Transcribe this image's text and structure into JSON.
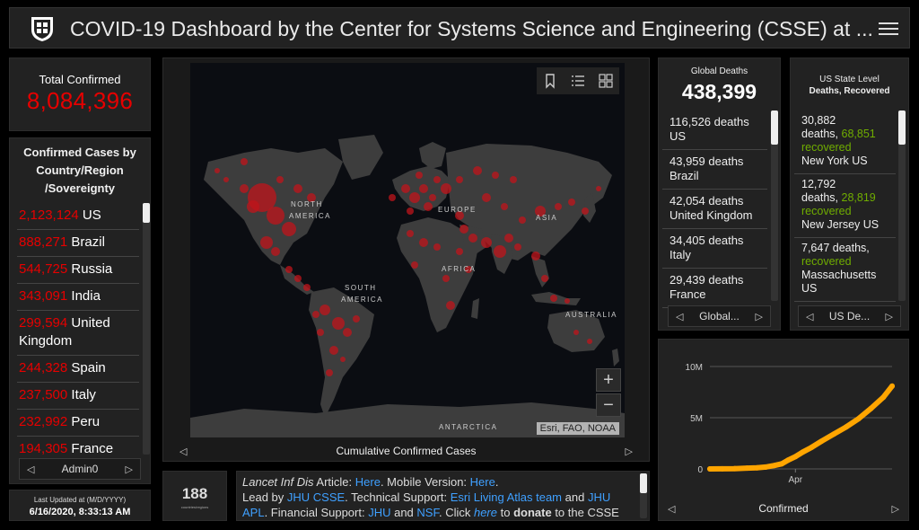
{
  "header": {
    "title": "COVID-19 Dashboard by the Center for Systems Science and Engineering (CSSE) at ..."
  },
  "total_confirmed": {
    "label": "Total Confirmed",
    "value": "8,084,396"
  },
  "confirmed_by_country": {
    "title_line1": "Confirmed Cases by",
    "title_line2": "Country/Region",
    "title_line3": "/Sovereignty",
    "rows": [
      {
        "count": "2,123,124",
        "name": "US"
      },
      {
        "count": "888,271",
        "name": "Brazil"
      },
      {
        "count": "544,725",
        "name": "Russia"
      },
      {
        "count": "343,091",
        "name": "India"
      },
      {
        "count": "299,594",
        "name": "United Kingdom"
      },
      {
        "count": "244,328",
        "name": "Spain"
      },
      {
        "count": "237,500",
        "name": "Italy"
      },
      {
        "count": "232,992",
        "name": "Peru"
      },
      {
        "count": "194,305",
        "name": "France"
      }
    ],
    "pager_label": "Admin0"
  },
  "last_updated": {
    "label": "Last Updated at (M/D/YYYY)",
    "value": "6/16/2020, 8:33:13 AM"
  },
  "map": {
    "labels": {
      "north_america_1": "NORTH",
      "north_america_2": "AMERICA",
      "south_america_1": "SOUTH",
      "south_america_2": "AMERICA",
      "europe": "EUROPE",
      "asia": "ASIA",
      "africa": "AFRICA",
      "australia": "AUSTRALIA",
      "antarctica": "ANTARCTICA"
    },
    "zoom_in": "+",
    "zoom_out": "−",
    "attribution": "Esri, FAO, NOAA",
    "caption": "Cumulative Confirmed Cases",
    "bubble_color": "#c0141b"
  },
  "country_count": {
    "value": "188",
    "label": "countries/regions"
  },
  "info": {
    "journal": "Lancet Inf Dis",
    "article": " Article: ",
    "here1": "Here",
    "mobile": ". Mobile Version: ",
    "here2": "Here",
    "dot": ".",
    "lead": "Lead by ",
    "jhu_csse": "JHU CSSE",
    "tech": ". Technical Support: ",
    "esri": "Esri Living Atlas team",
    "and1": " and ",
    "jhu_apl": "JHU APL",
    "fin": ". Financial Support: ",
    "jhu": "JHU",
    "and2": " and ",
    "nsf": "NSF",
    "click": ". Click ",
    "here3": "here",
    "to": " to ",
    "donate": "donate",
    "tail": " to the CSSE"
  },
  "global_deaths": {
    "label": "Global Deaths",
    "value": "438,399",
    "rows": [
      {
        "count": "116,526",
        "unit": "deaths",
        "name": "US"
      },
      {
        "count": "43,959",
        "unit": "deaths",
        "name": "Brazil"
      },
      {
        "count": "42,054",
        "unit": "deaths",
        "name": "United Kingdom"
      },
      {
        "count": "34,405",
        "unit": "deaths",
        "name": "Italy"
      },
      {
        "count": "29,439",
        "unit": "deaths",
        "name": "France"
      }
    ],
    "pager_label": "Global..."
  },
  "us_states": {
    "title_line1": "US State Level",
    "title_line2": "Deaths, Recovered",
    "rows": [
      {
        "deaths": "30,882",
        "recovered": "68,851",
        "name": "New York US"
      },
      {
        "deaths": "12,792",
        "recovered": "28,819",
        "name": "New Jersey US"
      },
      {
        "deaths": "7,647",
        "recovered": "",
        "name": "Massachusetts US"
      }
    ],
    "deaths_word": "deaths,",
    "recovered_word": "recovered",
    "pager_label": "US De..."
  },
  "chart_data": {
    "type": "line",
    "title": "",
    "xlabel": "",
    "ylabel": "",
    "yticks": [
      "0",
      "5M",
      "10M"
    ],
    "ytick_values": [
      0,
      5000000,
      10000000
    ],
    "xticks": [
      "Apr"
    ],
    "ylim": [
      0,
      10000000
    ],
    "x_day_range": [
      0,
      147
    ],
    "xtick_days": [
      69
    ],
    "series": [
      {
        "color": "#ffa500",
        "x": [
          0,
          10,
          20,
          30,
          38,
          45,
          52,
          58,
          63,
          69,
          75,
          82,
          90,
          100,
          110,
          120,
          130,
          140,
          147
        ],
        "values": [
          555,
          7800,
          28000,
          75000,
          110000,
          180000,
          330000,
          500000,
          850000,
          1200000,
          1650000,
          2100000,
          2700000,
          3400000,
          4100000,
          4900000,
          5900000,
          7000000,
          8084396
        ]
      }
    ],
    "caption": "Confirmed"
  }
}
